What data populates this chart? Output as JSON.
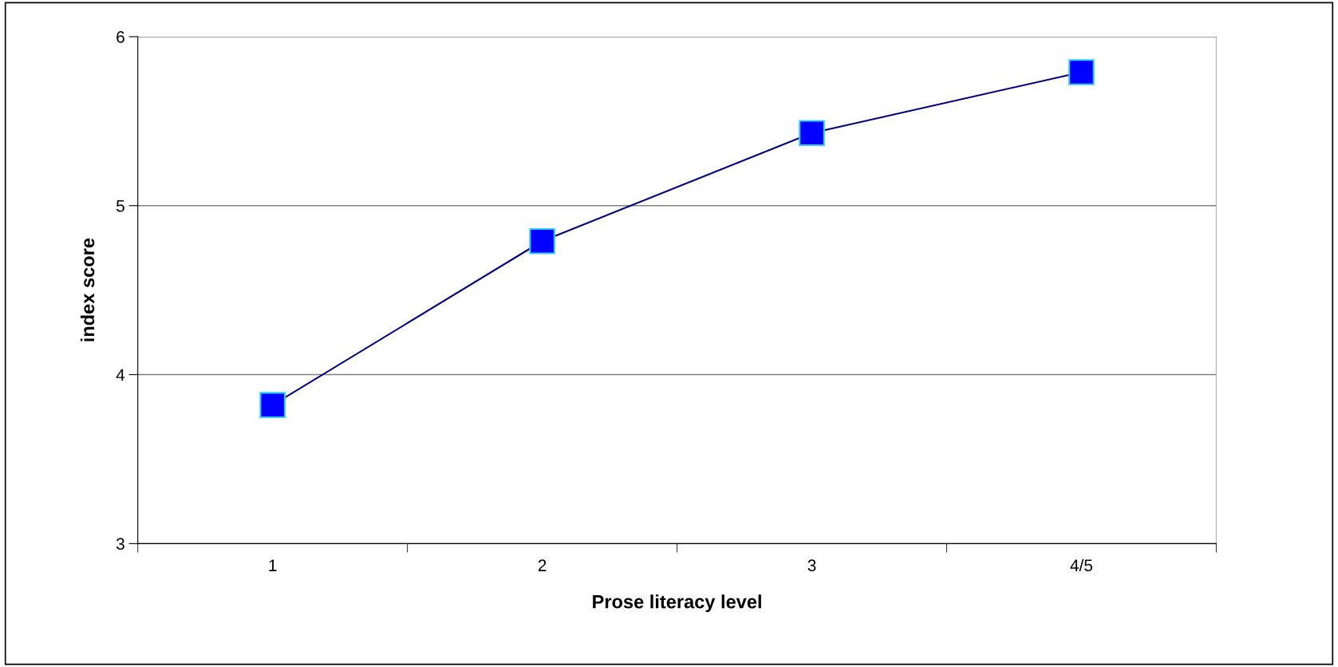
{
  "chart_data": {
    "type": "line",
    "xlabel": "Prose literacy level",
    "ylabel": "index score",
    "categories": [
      "1",
      "2",
      "3",
      "4/5"
    ],
    "series": [
      {
        "color": "#0000ff",
        "values": [
          3.82,
          4.79,
          5.43,
          5.79
        ]
      }
    ],
    "ylim": [
      3,
      6
    ],
    "yticks": [
      3,
      4,
      5,
      6
    ],
    "grid": "y",
    "marker": "square",
    "line_style": "solid"
  }
}
